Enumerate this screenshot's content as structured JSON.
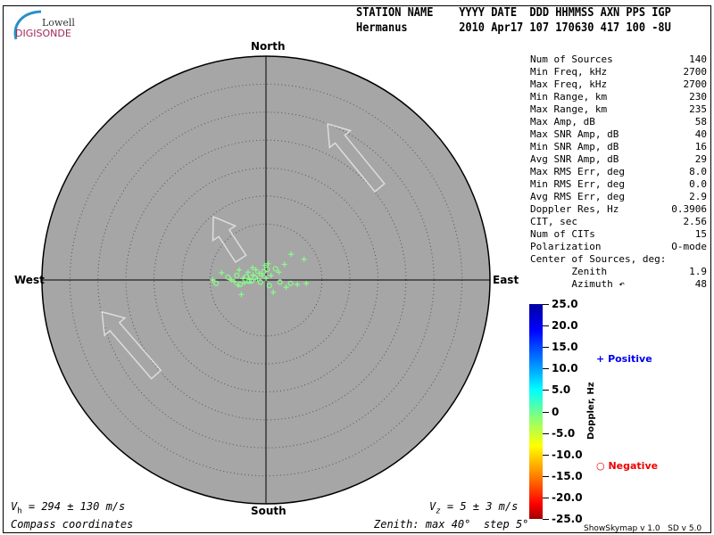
{
  "logo": {
    "line1": "Lowell",
    "line2": "DIGISONDE"
  },
  "header": {
    "labels": "STATION NAME    YYYY DATE  DDD HHMMSS AXN PPS IGP",
    "values": "Hermanus        2010 Apr17 107 170630 417 100 -8U"
  },
  "directions": {
    "north": "North",
    "south": "South",
    "east": "East",
    "west": "West"
  },
  "stats": [
    {
      "label": "Num of Sources",
      "value": "140"
    },
    {
      "label": "Min Freq, kHz",
      "value": "2700"
    },
    {
      "label": "Max Freq, kHz",
      "value": "2700"
    },
    {
      "label": "Min Range, km",
      "value": "230"
    },
    {
      "label": "Max Range, km",
      "value": "235"
    },
    {
      "label": "Max Amp, dB",
      "value": "58"
    },
    {
      "label": "Max SNR Amp, dB",
      "value": "40"
    },
    {
      "label": "Min SNR Amp, dB",
      "value": "16"
    },
    {
      "label": "Avg SNR Amp, dB",
      "value": "29"
    },
    {
      "label": "Max RMS Err, deg",
      "value": "8.0"
    },
    {
      "label": "Min RMS Err, deg",
      "value": "0.0"
    },
    {
      "label": "Avg RMS Err, deg",
      "value": "2.9"
    },
    {
      "label": "Doppler Res, Hz",
      "value": "0.3906"
    },
    {
      "label": "CIT, sec",
      "value": "2.56"
    },
    {
      "label": "Num of CITs",
      "value": "15"
    },
    {
      "label": "Polarization",
      "value": "O-mode"
    },
    {
      "label": "Center of Sources, deg:",
      "value": ""
    },
    {
      "label": "       Zenith",
      "value": "1.9"
    },
    {
      "label": "       Azimuth ↶",
      "value": "48"
    }
  ],
  "footer": {
    "vh": "V",
    "vh_sub": "h",
    "vh_rest": " = 294 ± 130 m/s",
    "vz": "V",
    "vz_sub": "z",
    "vz_rest": " = 5 ± 3 m/s",
    "coords": "Compass coordinates",
    "zenith": "Zenith: max 40°  step 5°",
    "version": "ShowSkymap v 1.0   SD v 5.0"
  },
  "chart_data": {
    "type": "scatter",
    "projection": "polar-zenith",
    "zenith_max": 40,
    "zenith_step": 5,
    "colorbar": {
      "label": "Doppler, Hz",
      "range": [
        -25,
        25
      ],
      "ticks": [
        "25.0",
        "20.0",
        "15.0",
        "10.0",
        "5.0",
        "0",
        "-5.0",
        "-10.0",
        "-15.0",
        "-20.0",
        "-25.0"
      ]
    },
    "legend": {
      "positive": "Positive",
      "negative": "Negative",
      "positive_color": "#0000ee",
      "negative_color": "#ee0000"
    },
    "point_color": "#88ff88",
    "points_deg_east_north": [
      [
        -9.5,
        0
      ],
      [
        -8.9,
        -0.6
      ],
      [
        -7.9,
        1.3
      ],
      [
        -6.8,
        0.5
      ],
      [
        -6.2,
        0
      ],
      [
        -5.6,
        -0.3
      ],
      [
        -5.2,
        0.8
      ],
      [
        -4.8,
        1.8
      ],
      [
        -4.6,
        -0.8
      ],
      [
        -4.1,
        0.3
      ],
      [
        -3.8,
        -0.5
      ],
      [
        -3.5,
        0.6
      ],
      [
        -3.2,
        1.4
      ],
      [
        -2.9,
        0.1
      ],
      [
        -2.6,
        -0.2
      ],
      [
        -2.3,
        0.9
      ],
      [
        -2.0,
        0.4
      ],
      [
        -1.8,
        1.8
      ],
      [
        -1.5,
        0.2
      ],
      [
        -1.2,
        1.2
      ],
      [
        -1.0,
        -0.4
      ],
      [
        -0.7,
        0.8
      ],
      [
        -0.4,
        1.5
      ],
      [
        -0.2,
        2.6
      ],
      [
        0,
        0.3
      ],
      [
        0.2,
        1.9
      ],
      [
        0.4,
        2.9
      ],
      [
        0.6,
        -1.0
      ],
      [
        0.9,
        0.8
      ],
      [
        1.3,
        -2.2
      ],
      [
        1.7,
        2.0
      ],
      [
        2.3,
        1.4
      ],
      [
        2.5,
        -0.4
      ],
      [
        3.3,
        2.8
      ],
      [
        3.6,
        -1.3
      ],
      [
        4.4,
        -0.6
      ],
      [
        -5.0,
        -0.9
      ],
      [
        -3.0,
        -0.2
      ],
      [
        -2.4,
        2.2
      ],
      [
        5.6,
        -0.8
      ],
      [
        6.8,
        3.7
      ],
      [
        4.5,
        4.6
      ],
      [
        7.2,
        -0.6
      ],
      [
        -4.4,
        -2.6
      ]
    ],
    "point_markers": "pcpcppcpcppcppcpcpppcpcppcpcppcpcppcpcpppppp"
  },
  "arrows": [
    {
      "from": [
        20.3,
        16.5
      ],
      "to": [
        11.0,
        27.9
      ]
    },
    {
      "from": [
        -4.5,
        3.8
      ],
      "to": [
        -9.4,
        11.3
      ]
    },
    {
      "from": [
        -19.6,
        -16.9
      ],
      "to": [
        -29.3,
        -5.7
      ]
    }
  ]
}
